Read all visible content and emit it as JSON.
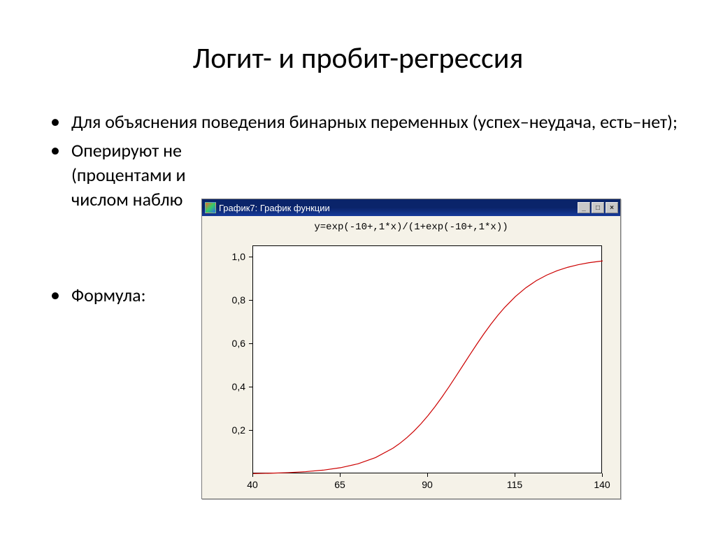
{
  "slide": {
    "title": "Логит- и пробит-регрессия",
    "bullets": [
      "Для объяснения поведения бинарных переменных (успех–неудача,  есть–нет);",
      "Оперируют не  \n(процентами и\n числом наблю",
      "Формула:"
    ]
  },
  "window": {
    "title": "График7: График функции",
    "buttons": {
      "min": "_",
      "max": "□",
      "close": "×"
    }
  },
  "chart": {
    "type": "line",
    "formula": "y=exp(-10+,1*x)/(1+exp(-10+,1*x))",
    "line_color": "#cc0000",
    "line_width": 1.2,
    "background_color": "#ffffff",
    "frame_color": "#000000",
    "panel_bg": "#f5f2e8",
    "xlim": [
      40,
      140
    ],
    "ylim": [
      0,
      1.05
    ],
    "xticks": [
      40,
      65,
      90,
      115,
      140
    ],
    "yticks": [
      0.2,
      0.4,
      0.6,
      0.8,
      1.0
    ],
    "ytick_labels": [
      "0,2",
      "0,4",
      "0,6",
      "0,8",
      "1,0"
    ],
    "tick_fontsize": 14,
    "formula_fontsize": 14,
    "formula_font": "Courier New",
    "series": {
      "x": [
        40,
        45,
        50,
        55,
        60,
        65,
        70,
        75,
        80,
        82,
        84,
        86,
        88,
        90,
        92,
        94,
        96,
        98,
        100,
        102,
        104,
        106,
        108,
        110,
        112,
        115,
        118,
        121,
        124,
        127,
        130,
        133,
        136,
        140
      ],
      "y": [
        0.0025,
        0.0041,
        0.0067,
        0.011,
        0.018,
        0.0293,
        0.0474,
        0.0759,
        0.1192,
        0.1419,
        0.168,
        0.1978,
        0.2315,
        0.2689,
        0.31,
        0.3543,
        0.4013,
        0.4502,
        0.5,
        0.5498,
        0.5987,
        0.6457,
        0.69,
        0.7311,
        0.7685,
        0.8176,
        0.8581,
        0.8909,
        0.9168,
        0.937,
        0.9526,
        0.9645,
        0.9734,
        0.982
      ]
    }
  }
}
